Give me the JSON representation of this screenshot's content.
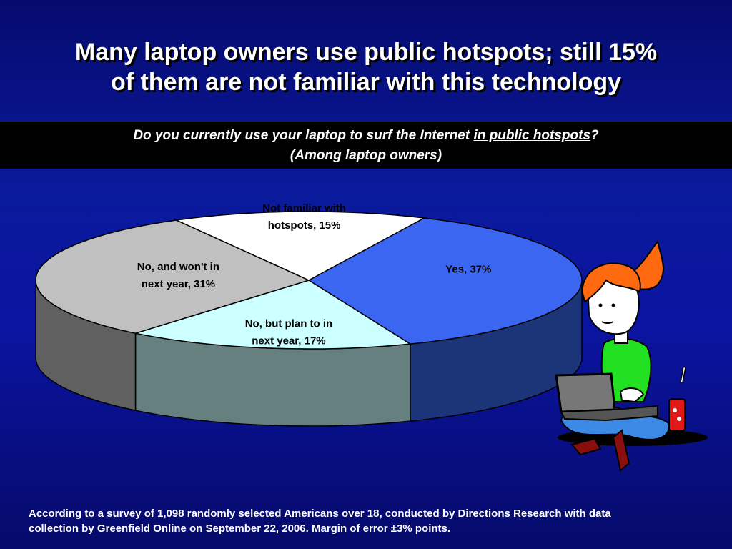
{
  "title": {
    "line1": "Many laptop owners use public hotspots; still 15%",
    "line2": "of them are not familiar with this technology"
  },
  "question": {
    "prefix": "Do you currently use your laptop to surf the Internet ",
    "emphasis": "in public hotspots",
    "suffix": "?",
    "line2": "(Among laptop owners)"
  },
  "footer": {
    "line1": "According to a survey of 1,098 randomly selected Americans over 18, conducted by Directions Research with data",
    "line2": "collection by Greenfield Online on September 22, 2006. Margin of error ±3% points."
  },
  "chart_data": {
    "type": "pie",
    "style": "3d",
    "slices": [
      {
        "label_line1": "Yes, 37%",
        "label_line2": "",
        "value": 37,
        "top_color": "#3a66f2",
        "side_color": "#1c3578"
      },
      {
        "label_line1": "No, but plan to in",
        "label_line2": "next year, 17%",
        "value": 17,
        "top_color": "#ccffff",
        "side_color": "#668080"
      },
      {
        "label_line1": "No, and won't in",
        "label_line2": "next year, 31%",
        "value": 31,
        "top_color": "#c0c0c0",
        "side_color": "#606060"
      },
      {
        "label_line1": "Not familiar with",
        "label_line2": "hotspots, 15%",
        "value": 15,
        "top_color": "#ffffff",
        "side_color": "#808080"
      }
    ]
  },
  "illustration": "girl-with-laptop"
}
